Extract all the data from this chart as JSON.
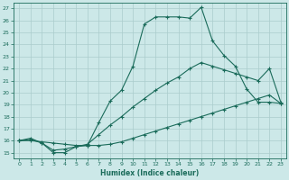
{
  "xlabel": "Humidex (Indice chaleur)",
  "background_color": "#cce8e8",
  "grid_color": "#aacccc",
  "line_color": "#1a6b5a",
  "xlim": [
    -0.5,
    23.5
  ],
  "ylim": [
    14.5,
    27.5
  ],
  "xticks": [
    0,
    1,
    2,
    3,
    4,
    5,
    6,
    7,
    8,
    9,
    10,
    11,
    12,
    13,
    14,
    15,
    16,
    17,
    18,
    19,
    20,
    21,
    22,
    23
  ],
  "yticks": [
    15,
    16,
    17,
    18,
    19,
    20,
    21,
    22,
    23,
    24,
    25,
    26,
    27
  ],
  "line1_x": [
    0,
    1,
    2,
    3,
    4,
    5,
    6,
    7,
    8,
    9,
    10,
    11,
    12,
    13,
    14,
    15,
    16,
    17,
    18,
    19,
    20,
    21,
    22,
    23
  ],
  "line1_y": [
    16.0,
    16.2,
    15.8,
    15.0,
    15.0,
    15.5,
    15.6,
    17.5,
    19.3,
    20.2,
    22.2,
    25.7,
    26.3,
    26.3,
    26.3,
    26.2,
    27.1,
    24.3,
    23.1,
    22.2,
    20.3,
    19.2,
    19.2,
    19.1
  ],
  "line2_x": [
    0,
    1,
    2,
    3,
    4,
    5,
    6,
    7,
    8,
    9,
    10,
    11,
    12,
    13,
    14,
    15,
    16,
    17,
    18,
    19,
    20,
    21,
    22,
    23
  ],
  "line2_y": [
    16.0,
    16.1,
    15.8,
    15.2,
    15.3,
    15.5,
    15.7,
    16.5,
    17.3,
    18.0,
    18.8,
    19.5,
    20.2,
    20.8,
    21.3,
    22.0,
    22.5,
    22.2,
    21.9,
    21.6,
    21.3,
    21.0,
    22.0,
    19.2
  ],
  "line3_x": [
    0,
    1,
    2,
    3,
    4,
    5,
    6,
    7,
    8,
    9,
    10,
    11,
    12,
    13,
    14,
    15,
    16,
    17,
    18,
    19,
    20,
    21,
    22,
    23
  ],
  "line3_y": [
    16.0,
    16.0,
    15.9,
    15.8,
    15.7,
    15.6,
    15.6,
    15.6,
    15.7,
    15.9,
    16.2,
    16.5,
    16.8,
    17.1,
    17.4,
    17.7,
    18.0,
    18.3,
    18.6,
    18.9,
    19.2,
    19.5,
    19.8,
    19.1
  ]
}
